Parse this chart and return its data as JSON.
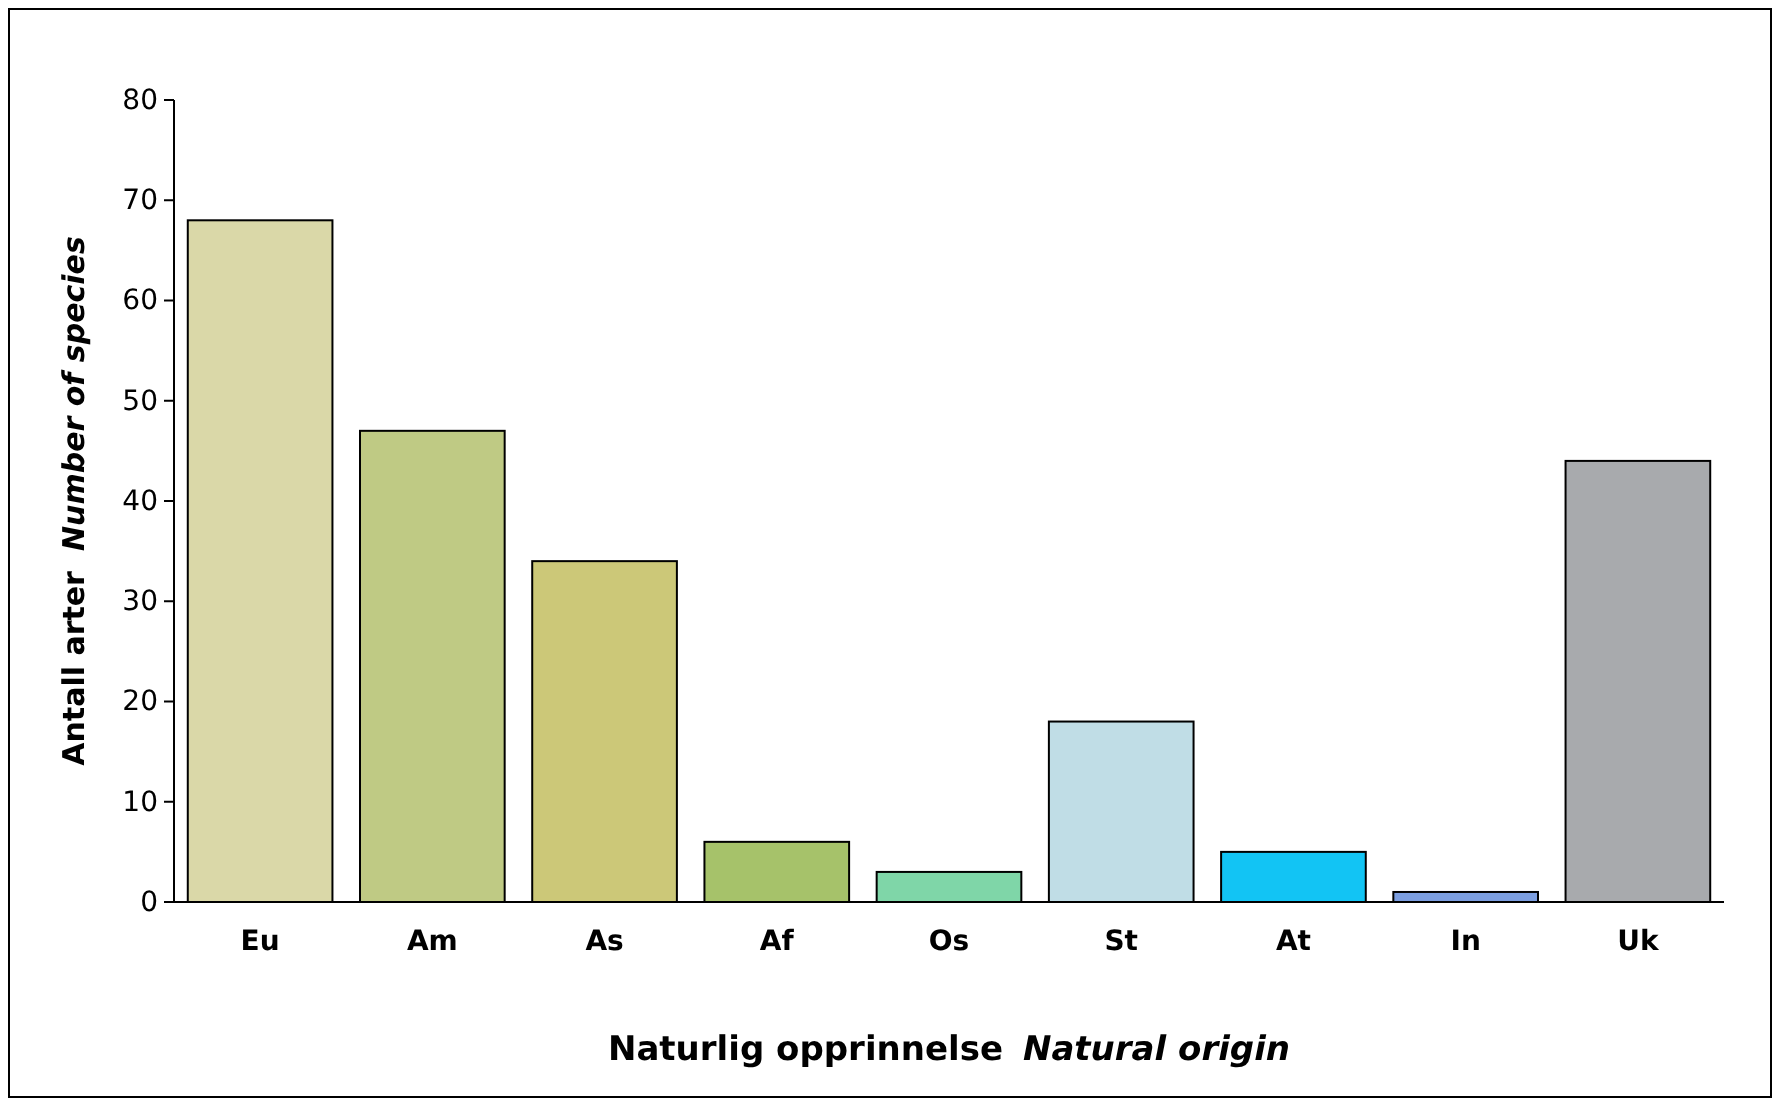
{
  "chart_data": {
    "type": "bar",
    "xlabel": "Naturlig opprinnelse  Natural origin",
    "ylabel": "Antall arter  Number of species",
    "categories": [
      "Eu",
      "Am",
      "As",
      "Af",
      "Os",
      "St",
      "At",
      "In",
      "Uk"
    ],
    "values": [
      68,
      47,
      34,
      6,
      3,
      18,
      5,
      1,
      44
    ],
    "colors": [
      "#dad8a8",
      "#bfca84",
      "#ccc878",
      "#a6c26a",
      "#7fd6a8",
      "#c0dde6",
      "#12c4f4",
      "#7c9ee0",
      "#a8aaad"
    ],
    "ylim": [
      0,
      80
    ],
    "yticks": [
      0,
      10,
      20,
      30,
      40,
      50,
      60,
      70,
      80
    ],
    "grid": false
  }
}
